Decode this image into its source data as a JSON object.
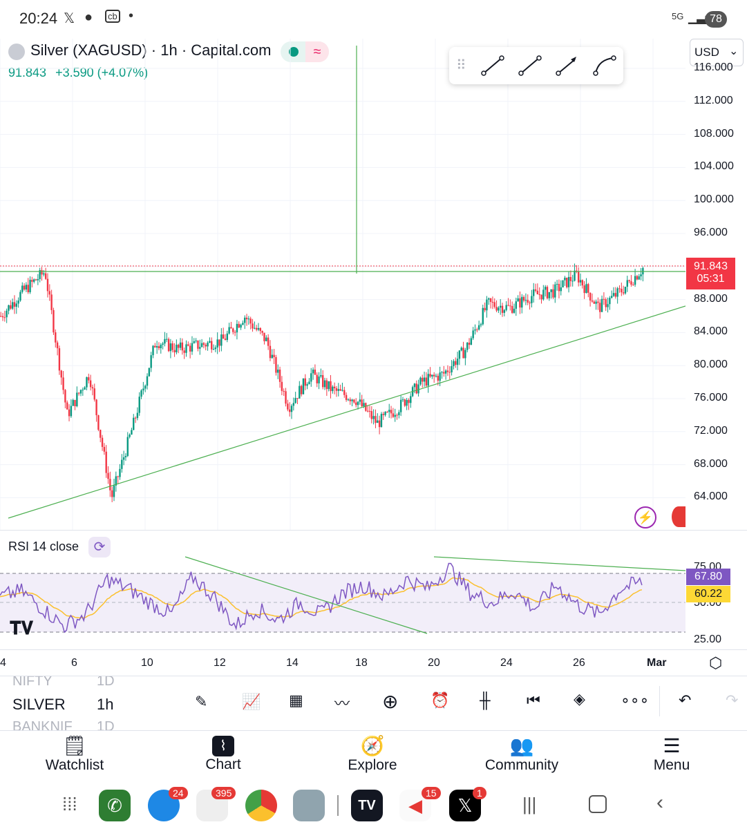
{
  "status_bar": {
    "time": "20:24",
    "battery": "78",
    "net": "5G"
  },
  "symbol": {
    "title": "Silver (XAGUSD) · 1h · Capital.com",
    "price": "91.843",
    "change": "+3.590 (+4.07%)"
  },
  "currency": "USD",
  "price_axis": [
    "116.000",
    "112.000",
    "108.000",
    "104.000",
    "100.000",
    "96.000",
    "92.000",
    "88.000",
    "84.000",
    "80.000",
    "76.000",
    "72.000",
    "68.000",
    "64.000"
  ],
  "last_price_tag": {
    "price": "91.843",
    "timer": "05:31"
  },
  "rsi": {
    "label": "RSI 14 close",
    "axis": [
      "75.00",
      "50.00",
      "25.00"
    ],
    "value": "67.80",
    "ma": "60.22"
  },
  "time_axis": [
    "4",
    "6",
    "10",
    "12",
    "14",
    "18",
    "20",
    "24",
    "26",
    "Mar"
  ],
  "watchlist_peek": [
    {
      "symbol": "NIFTY",
      "tf": "1D"
    },
    {
      "symbol": "SILVER",
      "tf": "1h"
    },
    {
      "symbol": "BANKNIF",
      "tf": "1D"
    }
  ],
  "bottom_nav": [
    "Watchlist",
    "Chart",
    "Explore",
    "Community",
    "Menu"
  ],
  "dock_badges": {
    "messages": "24",
    "slack": "395",
    "app_red": "15",
    "x": "1"
  },
  "colors": {
    "up": "#089981",
    "down": "#f23645",
    "trend": "#4caf50",
    "rsi": "#7e57c2",
    "rsi_ma": "#fbc02d"
  },
  "chart_data": {
    "type": "candlestick",
    "symbol": "XAGUSD",
    "timeframe": "1h",
    "ylim": [
      60,
      118
    ],
    "close_path": [
      {
        "d": "3",
        "v": 86
      },
      {
        "d": "4",
        "v": 89
      },
      {
        "d": "4.8",
        "v": 91.4
      },
      {
        "d": "5",
        "v": 74
      },
      {
        "d": "5.5",
        "v": 79
      },
      {
        "d": "6",
        "v": 64
      },
      {
        "d": "6.5",
        "v": 73
      },
      {
        "d": "8",
        "v": 83
      },
      {
        "d": "9",
        "v": 82
      },
      {
        "d": "10",
        "v": 82.5
      },
      {
        "d": "11",
        "v": 83
      },
      {
        "d": "12",
        "v": 86
      },
      {
        "d": "13",
        "v": 83
      },
      {
        "d": "13.5",
        "v": 75
      },
      {
        "d": "14",
        "v": 79
      },
      {
        "d": "15",
        "v": 77
      },
      {
        "d": "16",
        "v": 76
      },
      {
        "d": "17",
        "v": 73
      },
      {
        "d": "18",
        "v": 75
      },
      {
        "d": "19",
        "v": 78
      },
      {
        "d": "20",
        "v": 79
      },
      {
        "d": "21",
        "v": 82
      },
      {
        "d": "22",
        "v": 87.5
      },
      {
        "d": "23",
        "v": 87
      },
      {
        "d": "24",
        "v": 88.5
      },
      {
        "d": "25",
        "v": 89
      },
      {
        "d": "26",
        "v": 91
      },
      {
        "d": "27",
        "v": 87
      },
      {
        "d": "28",
        "v": 89
      },
      {
        "d": "28.6",
        "v": 91.8
      }
    ],
    "rsi_path": [
      55,
      60,
      45,
      30,
      40,
      70,
      62,
      50,
      40,
      72,
      55,
      30,
      45,
      35,
      50,
      40,
      58,
      65,
      55,
      70,
      62,
      80,
      58,
      50,
      60,
      45,
      65,
      48,
      40,
      62,
      67.8
    ]
  }
}
